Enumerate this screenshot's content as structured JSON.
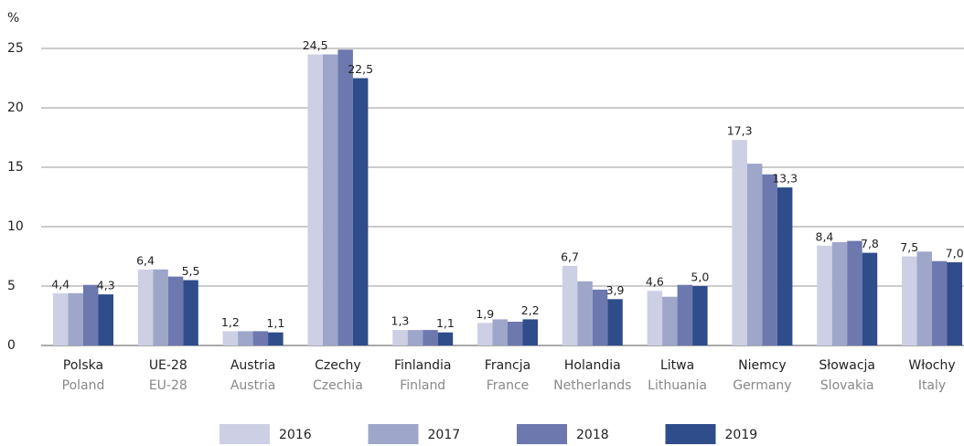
{
  "chart_data": {
    "type": "bar",
    "ylabel": "%",
    "categories": [
      "Polska",
      "UE-28",
      "Austria",
      "Czechy",
      "Finlandia",
      "Francja",
      "Holandia",
      "Litwa",
      "Niemcy",
      "Słowacja",
      "Włochy"
    ],
    "categories_en": [
      "Poland",
      "EU-28",
      "Austria",
      "Czechia",
      "Finland",
      "France",
      "Netherlands",
      "Lithuania",
      "Germany",
      "Slovakia",
      "Italy"
    ],
    "series": [
      {
        "name": "2016",
        "color": "#cdd0e4",
        "values": [
          4.4,
          6.4,
          1.2,
          24.5,
          1.3,
          1.9,
          6.7,
          4.6,
          17.3,
          8.4,
          7.5
        ],
        "value_labels": [
          "4,4",
          "6,4",
          "1,2",
          "24,5",
          "1,3",
          "1,9",
          "6,7",
          "4,6",
          "17,3",
          "8,4",
          "7,5"
        ]
      },
      {
        "name": "2017",
        "color": "#9ea6ca",
        "values": [
          4.4,
          6.4,
          1.2,
          24.5,
          1.3,
          2.2,
          5.4,
          4.1,
          15.3,
          8.7,
          7.9
        ]
      },
      {
        "name": "2018",
        "color": "#6c78ae",
        "values": [
          5.1,
          5.8,
          1.2,
          24.9,
          1.3,
          2.0,
          4.7,
          5.1,
          14.4,
          8.8,
          7.1
        ]
      },
      {
        "name": "2019",
        "color": "#2f4c8b",
        "values": [
          4.3,
          5.5,
          1.1,
          22.5,
          1.1,
          2.2,
          3.9,
          5.0,
          13.3,
          7.8,
          7.0
        ],
        "value_labels": [
          "4,3",
          "5,5",
          "1,1",
          "22,5",
          "1,1",
          "2,2",
          "3,9",
          "5,0",
          "13,3",
          "7,8",
          "7,0"
        ]
      }
    ],
    "ylim": [
      0,
      25
    ],
    "yticks": [
      0,
      5,
      10,
      15,
      20,
      25
    ],
    "grid": true,
    "legend": "bottom"
  }
}
